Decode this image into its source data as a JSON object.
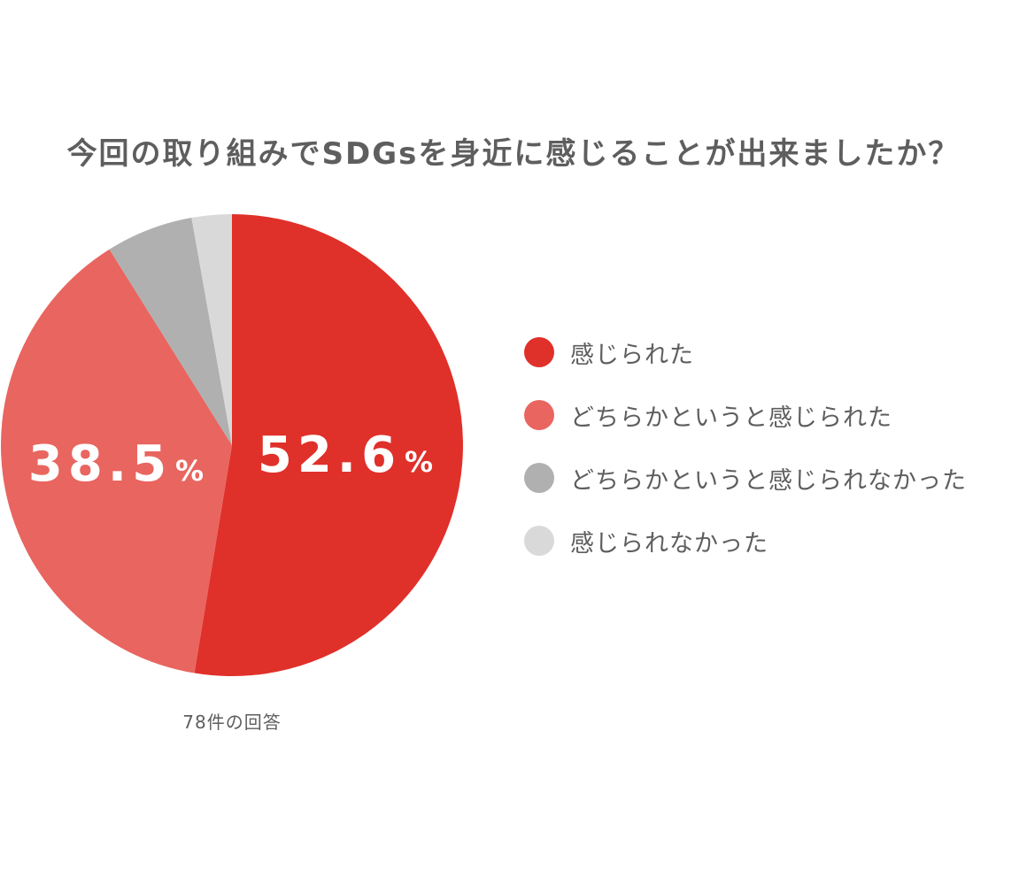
{
  "chart_data": {
    "type": "pie",
    "title": "今回の取り組みでSDGsを身近に感じることが出来ましたか？",
    "categories": [
      "感じられた",
      "どちらかというと感じられた",
      "どちらかというと感じられなかった",
      "感じられなかった"
    ],
    "values": [
      52.6,
      38.5,
      6.1,
      2.8
    ],
    "colors": [
      "#e0302a",
      "#e9655f",
      "#b0b0b0",
      "#d9d9d9"
    ],
    "data_labels": [
      {
        "value": "52.6",
        "unit": "%"
      },
      {
        "value": "38.5",
        "unit": "%"
      }
    ],
    "legend_position": "right",
    "note": "78件の回答"
  }
}
